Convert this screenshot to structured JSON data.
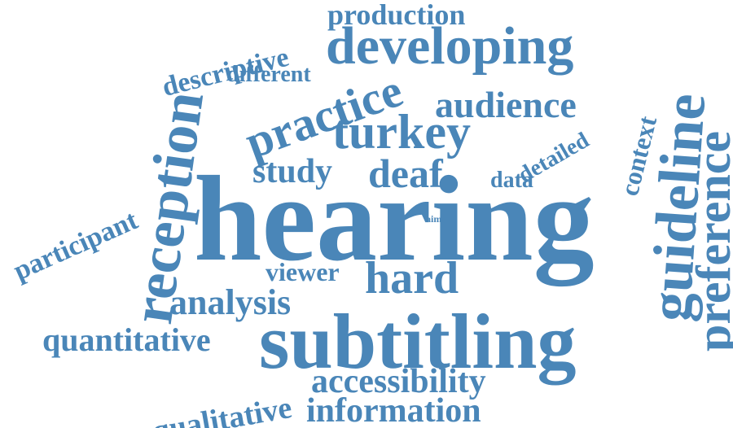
{
  "word_cloud": {
    "color": "#4a86b8",
    "words": [
      {
        "id": "hearing",
        "text": "hearing",
        "orientation": "horizontal"
      },
      {
        "id": "subtitling",
        "text": "subtitling",
        "orientation": "horizontal"
      },
      {
        "id": "developing",
        "text": "developing",
        "orientation": "horizontal"
      },
      {
        "id": "turkey",
        "text": "turkey",
        "orientation": "horizontal"
      },
      {
        "id": "practice",
        "text": "practice",
        "orientation": "angled"
      },
      {
        "id": "reception",
        "text": "reception",
        "orientation": "vertical"
      },
      {
        "id": "guideline",
        "text": "guideline",
        "orientation": "vertical"
      },
      {
        "id": "preference",
        "text": "preference",
        "orientation": "vertical"
      },
      {
        "id": "hard",
        "text": "hard",
        "orientation": "horizontal"
      },
      {
        "id": "deaf",
        "text": "deaf",
        "orientation": "horizontal"
      },
      {
        "id": "audience",
        "text": "audience",
        "orientation": "horizontal"
      },
      {
        "id": "production",
        "text": "production",
        "orientation": "horizontal"
      },
      {
        "id": "descriptive",
        "text": "descriptive",
        "orientation": "angled"
      },
      {
        "id": "different",
        "text": "different",
        "orientation": "horizontal"
      },
      {
        "id": "participant",
        "text": "participant",
        "orientation": "angled"
      },
      {
        "id": "study",
        "text": "study",
        "orientation": "horizontal"
      },
      {
        "id": "data",
        "text": "data",
        "orientation": "horizontal"
      },
      {
        "id": "detailed",
        "text": "detailed",
        "orientation": "angled"
      },
      {
        "id": "context",
        "text": "context",
        "orientation": "vertical"
      },
      {
        "id": "viewer",
        "text": "viewer",
        "orientation": "horizontal"
      },
      {
        "id": "analysis",
        "text": "analysis",
        "orientation": "horizontal"
      },
      {
        "id": "quantitative",
        "text": "quantitative",
        "orientation": "horizontal"
      },
      {
        "id": "qualitative",
        "text": "qualitative",
        "orientation": "angled"
      },
      {
        "id": "accessibility",
        "text": "accessibility",
        "orientation": "horizontal"
      },
      {
        "id": "information",
        "text": "information",
        "orientation": "horizontal"
      },
      {
        "id": "aim",
        "text": "aim",
        "orientation": "horizontal"
      }
    ]
  }
}
